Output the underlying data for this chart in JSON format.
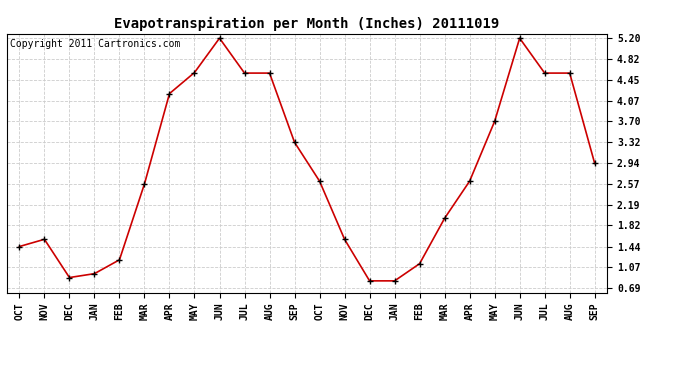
{
  "title": "Evapotranspiration per Month (Inches) 20111019",
  "copyright": "Copyright 2011 Cartronics.com",
  "x_labels": [
    "OCT",
    "NOV",
    "DEC",
    "JAN",
    "FEB",
    "MAR",
    "APR",
    "MAY",
    "JUN",
    "JUL",
    "AUG",
    "SEP",
    "OCT",
    "NOV",
    "DEC",
    "JAN",
    "FEB",
    "MAR",
    "APR",
    "MAY",
    "JUN",
    "JUL",
    "AUG",
    "SEP"
  ],
  "y_values": [
    1.44,
    1.57,
    0.88,
    0.95,
    1.2,
    2.57,
    4.2,
    4.58,
    5.2,
    4.57,
    4.57,
    3.32,
    2.62,
    1.57,
    0.82,
    0.82,
    1.13,
    1.95,
    2.62,
    3.7,
    5.2,
    4.57,
    4.57,
    2.94
  ],
  "line_color": "#cc0000",
  "marker_color": "#000000",
  "bg_color": "#ffffff",
  "grid_color": "#cccccc",
  "y_ticks": [
    0.69,
    1.07,
    1.44,
    1.82,
    2.19,
    2.57,
    2.94,
    3.32,
    3.7,
    4.07,
    4.45,
    4.82,
    5.2
  ],
  "y_min": 0.69,
  "y_max": 5.2,
  "title_fontsize": 10,
  "copyright_fontsize": 7,
  "tick_fontsize": 7
}
